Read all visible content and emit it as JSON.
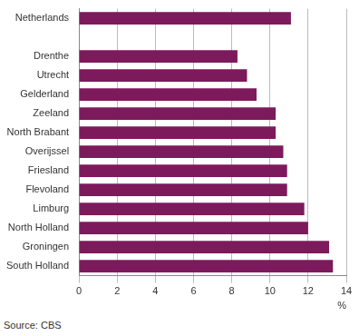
{
  "chart_data": {
    "type": "bar",
    "orientation": "horizontal",
    "categories": [
      "Netherlands",
      null,
      "Drenthe",
      "Utrecht",
      "Gelderland",
      "Zeeland",
      "North Brabant",
      "Overijssel",
      "Friesland",
      "Flevoland",
      "Limburg",
      "North Holland",
      "Groningen",
      "South Holland"
    ],
    "values": [
      11.1,
      null,
      8.3,
      8.8,
      9.3,
      10.3,
      10.3,
      10.7,
      10.9,
      10.9,
      11.8,
      12.0,
      13.1,
      13.3
    ],
    "color": "#7d1a5c",
    "x_label": "%",
    "xlim": [
      0,
      14
    ],
    "xticks": [
      0,
      2,
      4,
      6,
      8,
      10,
      12,
      14
    ],
    "grid": true,
    "source": "Source: CBS"
  }
}
